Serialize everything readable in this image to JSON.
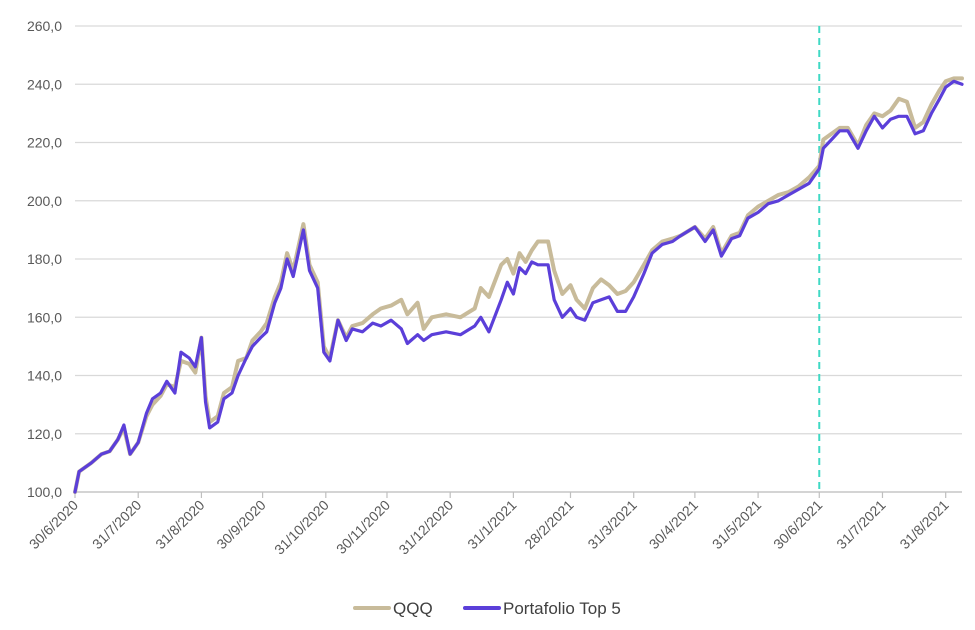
{
  "chart_data": {
    "type": "line",
    "title": "",
    "xlabel": "",
    "ylabel": "",
    "ylim": [
      100,
      260
    ],
    "y_ticks": [
      "100,0",
      "120,0",
      "140,0",
      "160,0",
      "180,0",
      "200,0",
      "220,0",
      "240,0",
      "260,0"
    ],
    "x_ticks": [
      "30/6/2020",
      "31/7/2020",
      "31/8/2020",
      "30/9/2020",
      "31/10/2020",
      "30/11/2020",
      "31/12/2020",
      "31/1/2021",
      "28/2/2021",
      "31/3/2021",
      "30/4/2021",
      "31/5/2021",
      "30/6/2021",
      "31/7/2021",
      "31/8/2021"
    ],
    "x_range": [
      "2020-06-30",
      "2021-09-08"
    ],
    "grid": "horizontal",
    "legend_position": "bottom",
    "reference_line": {
      "x": "2021-06-30",
      "style": "dashed",
      "color": "#3fd9c4"
    },
    "series": [
      {
        "name": "QQQ",
        "color": "#c8bb9a",
        "points": [
          [
            "2020-06-30",
            100
          ],
          [
            "2020-07-02",
            107
          ],
          [
            "2020-07-08",
            110
          ],
          [
            "2020-07-13",
            113
          ],
          [
            "2020-07-17",
            114
          ],
          [
            "2020-07-21",
            118
          ],
          [
            "2020-07-24",
            122
          ],
          [
            "2020-07-27",
            113
          ],
          [
            "2020-07-31",
            117
          ],
          [
            "2020-08-04",
            126
          ],
          [
            "2020-08-07",
            130
          ],
          [
            "2020-08-11",
            133
          ],
          [
            "2020-08-14",
            137
          ],
          [
            "2020-08-18",
            136
          ],
          [
            "2020-08-21",
            145
          ],
          [
            "2020-08-25",
            144
          ],
          [
            "2020-08-28",
            141
          ],
          [
            "2020-08-31",
            153
          ],
          [
            "2020-09-02",
            133
          ],
          [
            "2020-09-04",
            124
          ],
          [
            "2020-09-08",
            126
          ],
          [
            "2020-09-11",
            134
          ],
          [
            "2020-09-15",
            136
          ],
          [
            "2020-09-18",
            145
          ],
          [
            "2020-09-22",
            146
          ],
          [
            "2020-09-25",
            152
          ],
          [
            "2020-09-29",
            155
          ],
          [
            "2020-10-02",
            158
          ],
          [
            "2020-10-06",
            167
          ],
          [
            "2020-10-09",
            172
          ],
          [
            "2020-10-12",
            182
          ],
          [
            "2020-10-15",
            176
          ],
          [
            "2020-10-20",
            192
          ],
          [
            "2020-10-23",
            178
          ],
          [
            "2020-10-27",
            172
          ],
          [
            "2020-10-30",
            150
          ],
          [
            "2020-11-02",
            146
          ],
          [
            "2020-11-06",
            159
          ],
          [
            "2020-11-10",
            153
          ],
          [
            "2020-11-13",
            157
          ],
          [
            "2020-11-18",
            158
          ],
          [
            "2020-11-23",
            161
          ],
          [
            "2020-11-27",
            163
          ],
          [
            "2020-12-02",
            164
          ],
          [
            "2020-12-07",
            166
          ],
          [
            "2020-12-10",
            161
          ],
          [
            "2020-12-15",
            165
          ],
          [
            "2020-12-18",
            156
          ],
          [
            "2020-12-22",
            160
          ],
          [
            "2020-12-29",
            161
          ],
          [
            "2021-01-05",
            160
          ],
          [
            "2021-01-12",
            163
          ],
          [
            "2021-01-15",
            170
          ],
          [
            "2021-01-19",
            167
          ],
          [
            "2021-01-25",
            178
          ],
          [
            "2021-01-28",
            180
          ],
          [
            "2021-01-31",
            175
          ],
          [
            "2021-02-03",
            182
          ],
          [
            "2021-02-06",
            179
          ],
          [
            "2021-02-09",
            183
          ],
          [
            "2021-02-12",
            186
          ],
          [
            "2021-02-17",
            186
          ],
          [
            "2021-02-20",
            176
          ],
          [
            "2021-02-24",
            168
          ],
          [
            "2021-02-28",
            171
          ],
          [
            "2021-03-03",
            166
          ],
          [
            "2021-03-07",
            163
          ],
          [
            "2021-03-11",
            170
          ],
          [
            "2021-03-15",
            173
          ],
          [
            "2021-03-19",
            171
          ],
          [
            "2021-03-23",
            168
          ],
          [
            "2021-03-27",
            169
          ],
          [
            "2021-03-31",
            172
          ],
          [
            "2021-04-05",
            178
          ],
          [
            "2021-04-09",
            183
          ],
          [
            "2021-04-14",
            186
          ],
          [
            "2021-04-19",
            187
          ],
          [
            "2021-04-23",
            188
          ],
          [
            "2021-04-30",
            191
          ],
          [
            "2021-05-05",
            187
          ],
          [
            "2021-05-09",
            191
          ],
          [
            "2021-05-13",
            182
          ],
          [
            "2021-05-18",
            188
          ],
          [
            "2021-05-22",
            189
          ],
          [
            "2021-05-26",
            195
          ],
          [
            "2021-05-31",
            198
          ],
          [
            "2021-06-05",
            200
          ],
          [
            "2021-06-10",
            202
          ],
          [
            "2021-06-15",
            203
          ],
          [
            "2021-06-20",
            205
          ],
          [
            "2021-06-25",
            208
          ],
          [
            "2021-06-30",
            212
          ],
          [
            "2021-07-02",
            221
          ],
          [
            "2021-07-06",
            223
          ],
          [
            "2021-07-10",
            225
          ],
          [
            "2021-07-14",
            225
          ],
          [
            "2021-07-19",
            219
          ],
          [
            "2021-07-23",
            226
          ],
          [
            "2021-07-27",
            230
          ],
          [
            "2021-07-31",
            229
          ],
          [
            "2021-08-04",
            231
          ],
          [
            "2021-08-08",
            235
          ],
          [
            "2021-08-12",
            234
          ],
          [
            "2021-08-16",
            225
          ],
          [
            "2021-08-20",
            227
          ],
          [
            "2021-08-24",
            233
          ],
          [
            "2021-08-28",
            238
          ],
          [
            "2021-08-31",
            241
          ],
          [
            "2021-09-04",
            242
          ],
          [
            "2021-09-08",
            242
          ]
        ]
      },
      {
        "name": "Portafolio Top 5",
        "color": "#5b3fd9",
        "points": [
          [
            "2020-06-30",
            100
          ],
          [
            "2020-07-02",
            107
          ],
          [
            "2020-07-08",
            110
          ],
          [
            "2020-07-13",
            113
          ],
          [
            "2020-07-17",
            114
          ],
          [
            "2020-07-21",
            118
          ],
          [
            "2020-07-24",
            123
          ],
          [
            "2020-07-27",
            113
          ],
          [
            "2020-07-31",
            117
          ],
          [
            "2020-08-04",
            127
          ],
          [
            "2020-08-07",
            132
          ],
          [
            "2020-08-11",
            134
          ],
          [
            "2020-08-14",
            138
          ],
          [
            "2020-08-18",
            134
          ],
          [
            "2020-08-21",
            148
          ],
          [
            "2020-08-25",
            146
          ],
          [
            "2020-08-28",
            143
          ],
          [
            "2020-08-31",
            153
          ],
          [
            "2020-09-02",
            131
          ],
          [
            "2020-09-04",
            122
          ],
          [
            "2020-09-08",
            124
          ],
          [
            "2020-09-11",
            132
          ],
          [
            "2020-09-15",
            134
          ],
          [
            "2020-09-18",
            140
          ],
          [
            "2020-09-22",
            146
          ],
          [
            "2020-09-25",
            150
          ],
          [
            "2020-09-29",
            153
          ],
          [
            "2020-10-02",
            155
          ],
          [
            "2020-10-06",
            165
          ],
          [
            "2020-10-09",
            170
          ],
          [
            "2020-10-12",
            180
          ],
          [
            "2020-10-15",
            174
          ],
          [
            "2020-10-20",
            190
          ],
          [
            "2020-10-23",
            176
          ],
          [
            "2020-10-27",
            170
          ],
          [
            "2020-10-30",
            148
          ],
          [
            "2020-11-02",
            145
          ],
          [
            "2020-11-06",
            159
          ],
          [
            "2020-11-10",
            152
          ],
          [
            "2020-11-13",
            156
          ],
          [
            "2020-11-18",
            155
          ],
          [
            "2020-11-23",
            158
          ],
          [
            "2020-11-27",
            157
          ],
          [
            "2020-12-02",
            159
          ],
          [
            "2020-12-07",
            156
          ],
          [
            "2020-12-10",
            151
          ],
          [
            "2020-12-15",
            154
          ],
          [
            "2020-12-18",
            152
          ],
          [
            "2020-12-22",
            154
          ],
          [
            "2020-12-29",
            155
          ],
          [
            "2021-01-05",
            154
          ],
          [
            "2021-01-12",
            157
          ],
          [
            "2021-01-15",
            160
          ],
          [
            "2021-01-19",
            155
          ],
          [
            "2021-01-25",
            166
          ],
          [
            "2021-01-28",
            172
          ],
          [
            "2021-01-31",
            168
          ],
          [
            "2021-02-03",
            177
          ],
          [
            "2021-02-06",
            175
          ],
          [
            "2021-02-09",
            179
          ],
          [
            "2021-02-12",
            178
          ],
          [
            "2021-02-17",
            178
          ],
          [
            "2021-02-20",
            166
          ],
          [
            "2021-02-24",
            160
          ],
          [
            "2021-02-28",
            163
          ],
          [
            "2021-03-03",
            160
          ],
          [
            "2021-03-07",
            159
          ],
          [
            "2021-03-11",
            165
          ],
          [
            "2021-03-15",
            166
          ],
          [
            "2021-03-19",
            167
          ],
          [
            "2021-03-23",
            162
          ],
          [
            "2021-03-27",
            162
          ],
          [
            "2021-03-31",
            167
          ],
          [
            "2021-04-05",
            175
          ],
          [
            "2021-04-09",
            182
          ],
          [
            "2021-04-14",
            185
          ],
          [
            "2021-04-19",
            186
          ],
          [
            "2021-04-23",
            188
          ],
          [
            "2021-04-30",
            191
          ],
          [
            "2021-05-05",
            186
          ],
          [
            "2021-05-09",
            190
          ],
          [
            "2021-05-13",
            181
          ],
          [
            "2021-05-18",
            187
          ],
          [
            "2021-05-22",
            188
          ],
          [
            "2021-05-26",
            194
          ],
          [
            "2021-05-31",
            196
          ],
          [
            "2021-06-05",
            199
          ],
          [
            "2021-06-10",
            200
          ],
          [
            "2021-06-15",
            202
          ],
          [
            "2021-06-20",
            204
          ],
          [
            "2021-06-25",
            206
          ],
          [
            "2021-06-30",
            211
          ],
          [
            "2021-07-02",
            218
          ],
          [
            "2021-07-06",
            221
          ],
          [
            "2021-07-10",
            224
          ],
          [
            "2021-07-14",
            224
          ],
          [
            "2021-07-19",
            218
          ],
          [
            "2021-07-23",
            224
          ],
          [
            "2021-07-27",
            229
          ],
          [
            "2021-07-31",
            225
          ],
          [
            "2021-08-04",
            228
          ],
          [
            "2021-08-08",
            229
          ],
          [
            "2021-08-12",
            229
          ],
          [
            "2021-08-16",
            223
          ],
          [
            "2021-08-20",
            224
          ],
          [
            "2021-08-24",
            230
          ],
          [
            "2021-08-28",
            235
          ],
          [
            "2021-08-31",
            239
          ],
          [
            "2021-09-04",
            241
          ],
          [
            "2021-09-08",
            240
          ]
        ]
      }
    ]
  }
}
